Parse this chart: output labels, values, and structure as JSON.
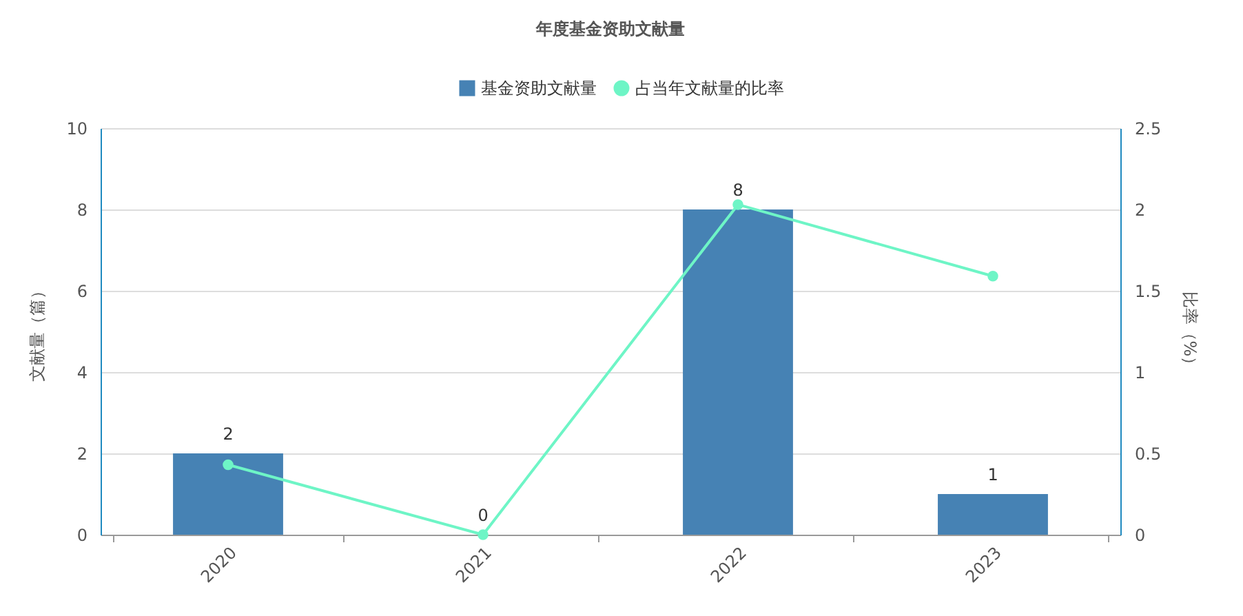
{
  "chart_data": {
    "type": "bar",
    "title": "年度基金资助文献量",
    "categories": [
      "2020",
      "2021",
      "2022",
      "2023"
    ],
    "ylabel": "文献量（篇）",
    "y2label": "比率（%）",
    "ylim": [
      0,
      10
    ],
    "yticks": [
      0,
      2,
      4,
      6,
      8,
      10
    ],
    "y2lim": [
      0,
      2.5
    ],
    "y2ticks": [
      0,
      0.5,
      1,
      1.5,
      2,
      2.5
    ],
    "grid": "y",
    "legend": "top",
    "marker": "circle",
    "series": [
      {
        "name": "基金资助文献量",
        "color": "#4682b4",
        "values": [
          2,
          0,
          8,
          1
        ],
        "value_labels": [
          "2",
          "0",
          "8",
          "1"
        ]
      },
      {
        "name": "占当年文献量的比率",
        "type": "line",
        "axis": "y2",
        "color": "#6ef5c6",
        "values": [
          0.43,
          0,
          2.03,
          1.59
        ]
      }
    ]
  }
}
